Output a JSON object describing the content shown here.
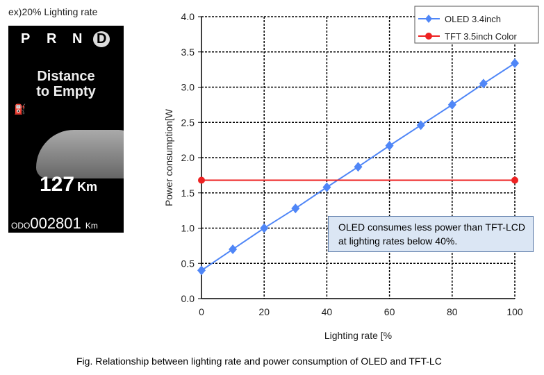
{
  "panel": {
    "title": "ex)20% Lighting rate",
    "gears": [
      "P",
      "R",
      "N",
      "D"
    ],
    "dte_line1": "Distance",
    "dte_line2": "to Empty",
    "distance": "127",
    "distance_unit": "Km",
    "odo_label": "ODO",
    "odo_value": "002801",
    "odo_unit": "Km"
  },
  "chart_data": {
    "type": "line",
    "xlabel": "Lighting rate [%",
    "ylabel": "Power consumption[W",
    "xlim": [
      0,
      100
    ],
    "ylim": [
      0,
      4.0
    ],
    "xticks": [
      "0",
      "20",
      "40",
      "60",
      "80",
      "100"
    ],
    "yticks": [
      "0.0",
      "0.5",
      "1.0",
      "1.5",
      "2.0",
      "2.5",
      "3.0",
      "3.5",
      "4.0"
    ],
    "grid": true,
    "legend": "top-right",
    "series": [
      {
        "name": "OLED 3.4inch",
        "color": "#4f86f7",
        "marker": "diamond",
        "x": [
          0,
          10,
          20,
          30,
          40,
          50,
          60,
          70,
          80,
          90,
          100
        ],
        "y": [
          0.4,
          0.7,
          1.0,
          1.28,
          1.58,
          1.87,
          2.17,
          2.46,
          2.75,
          3.05,
          3.34
        ]
      },
      {
        "name": "TFT 3.5inch Color",
        "color": "#ee2222",
        "marker": "circle",
        "x": [
          0,
          100
        ],
        "y": [
          1.68,
          1.68
        ]
      }
    ],
    "annotation": "OLED consumes less power than TFT-LCD at lighting rates below 40%."
  },
  "caption": "Fig. Relationship between lighting rate and power consumption of OLED and TFT-LC"
}
